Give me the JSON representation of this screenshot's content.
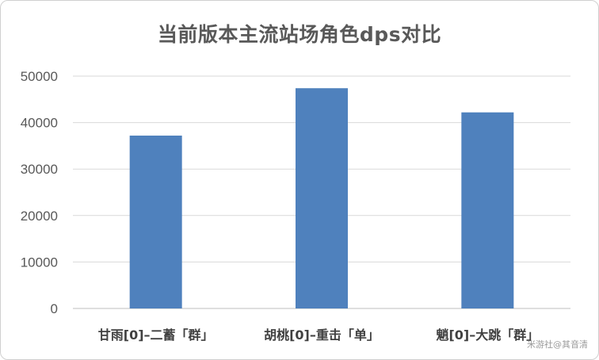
{
  "chart_data": {
    "type": "bar",
    "title": "当前版本主流站场角色dps对比",
    "categories": [
      "甘雨[0]–二蓄「群」",
      "胡桃[0]–重击「单」",
      "魈[0]–大跳「群」"
    ],
    "values": [
      37200,
      47400,
      42200
    ],
    "yticks": [
      0,
      10000,
      20000,
      30000,
      40000,
      50000
    ],
    "ylim": [
      0,
      50000
    ],
    "xlabel": "",
    "ylabel": "",
    "grid": true,
    "colors": {
      "bar": "#4f81bd",
      "grid": "#d9d9d9",
      "axis": "#bfbfbf"
    }
  },
  "watermark": "米游社@其音清"
}
